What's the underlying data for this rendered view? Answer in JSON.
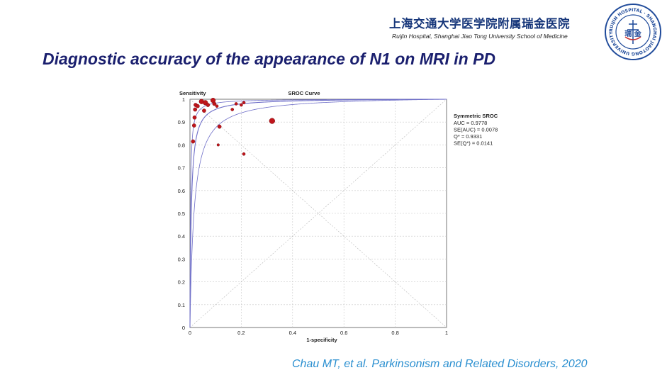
{
  "header": {
    "hospital_cn": "上海交通大学医学院附属瑞金医院",
    "hospital_en": "Ruijin Hospital, Shanghai Jiao Tong University School of Medicine",
    "logo": {
      "icon": "ruijin-hospital-seal-icon",
      "ring_text": "RUIJIN HOSPITAL · SHANGHAI JIAOTONG UNIVERSITY",
      "center_text": "瑞 金"
    }
  },
  "slide": {
    "title": "Diagnostic accuracy of the appearance of N1 on MRI in PD"
  },
  "citation": "Chau MT, et al. Parkinsonism and Related Disorders, 2020",
  "colors": {
    "title": "#1a1f6e",
    "header": "#16367a",
    "citation": "#2a8fd0",
    "curve": "#6e6ec8",
    "point": "#c0151b",
    "grid": "#c8c8c8"
  },
  "chart_data": {
    "type": "scatter",
    "title": "SROC Curve",
    "xlabel": "1-specificity",
    "ylabel": "Sensitivity",
    "xlim": [
      0,
      1
    ],
    "ylim": [
      0,
      1
    ],
    "xticks": [
      "0",
      "0.2",
      "0.4",
      "0.6",
      "0.8",
      "1"
    ],
    "yticks": [
      "0",
      "0.1",
      "0.2",
      "0.3",
      "0.4",
      "0.5",
      "0.6",
      "0.7",
      "0.8",
      "0.9",
      "1"
    ],
    "grid": true,
    "points": [
      {
        "x": 0.012,
        "y": 0.815,
        "w": 1
      },
      {
        "x": 0.016,
        "y": 0.885,
        "w": 1
      },
      {
        "x": 0.018,
        "y": 0.92,
        "w": 1
      },
      {
        "x": 0.02,
        "y": 0.955,
        "w": 1
      },
      {
        "x": 0.022,
        "y": 0.975,
        "w": 1
      },
      {
        "x": 0.03,
        "y": 0.97,
        "w": 1
      },
      {
        "x": 0.045,
        "y": 0.99,
        "w": 1.3
      },
      {
        "x": 0.055,
        "y": 0.95,
        "w": 1
      },
      {
        "x": 0.06,
        "y": 0.985,
        "w": 1.3
      },
      {
        "x": 0.07,
        "y": 0.975,
        "w": 1
      },
      {
        "x": 0.09,
        "y": 0.995,
        "w": 1.3
      },
      {
        "x": 0.095,
        "y": 0.98,
        "w": 1
      },
      {
        "x": 0.105,
        "y": 0.97,
        "w": 0.8
      },
      {
        "x": 0.11,
        "y": 0.8,
        "w": 0.7
      },
      {
        "x": 0.115,
        "y": 0.88,
        "w": 1
      },
      {
        "x": 0.165,
        "y": 0.955,
        "w": 0.8
      },
      {
        "x": 0.18,
        "y": 0.98,
        "w": 0.8
      },
      {
        "x": 0.2,
        "y": 0.975,
        "w": 0.8
      },
      {
        "x": 0.21,
        "y": 0.985,
        "w": 0.8
      },
      {
        "x": 0.21,
        "y": 0.76,
        "w": 0.8
      },
      {
        "x": 0.32,
        "y": 0.905,
        "w": 1.5
      }
    ],
    "curve": {
      "model": "symmetric-sroc",
      "q_star": 0.9331,
      "auc": 0.9778
    },
    "stats": {
      "heading": "Symmetric SROC",
      "lines": [
        "AUC = 0.9778",
        "SE(AUC) = 0.0078",
        "Q* = 0.9331",
        "SE(Q*) = 0.0141"
      ]
    }
  }
}
